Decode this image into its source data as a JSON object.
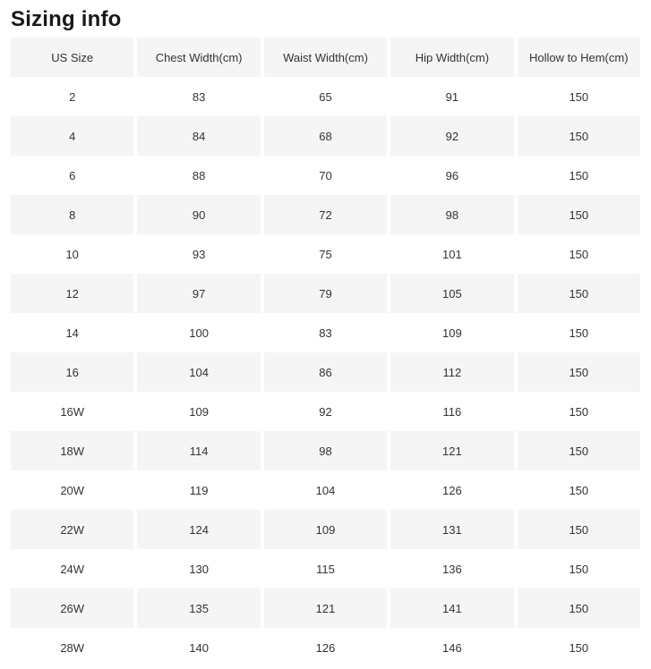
{
  "title": "Sizing info",
  "colors": {
    "page_background": "#ffffff",
    "row_stripe": "#f5f5f5",
    "header_background": "#f5f5f5",
    "text": "#333333",
    "title_text": "#191919"
  },
  "table": {
    "columns": [
      "US Size",
      "Chest Width(cm)",
      "Waist Width(cm)",
      "Hip Width(cm)",
      "Hollow to Hem(cm)"
    ],
    "rows": [
      [
        "2",
        "83",
        "65",
        "91",
        "150"
      ],
      [
        "4",
        "84",
        "68",
        "92",
        "150"
      ],
      [
        "6",
        "88",
        "70",
        "96",
        "150"
      ],
      [
        "8",
        "90",
        "72",
        "98",
        "150"
      ],
      [
        "10",
        "93",
        "75",
        "101",
        "150"
      ],
      [
        "12",
        "97",
        "79",
        "105",
        "150"
      ],
      [
        "14",
        "100",
        "83",
        "109",
        "150"
      ],
      [
        "16",
        "104",
        "86",
        "112",
        "150"
      ],
      [
        "16W",
        "109",
        "92",
        "116",
        "150"
      ],
      [
        "18W",
        "114",
        "98",
        "121",
        "150"
      ],
      [
        "20W",
        "119",
        "104",
        "126",
        "150"
      ],
      [
        "22W",
        "124",
        "109",
        "131",
        "150"
      ],
      [
        "24W",
        "130",
        "115",
        "136",
        "150"
      ],
      [
        "26W",
        "135",
        "121",
        "141",
        "150"
      ],
      [
        "28W",
        "140",
        "126",
        "146",
        "150"
      ]
    ]
  }
}
